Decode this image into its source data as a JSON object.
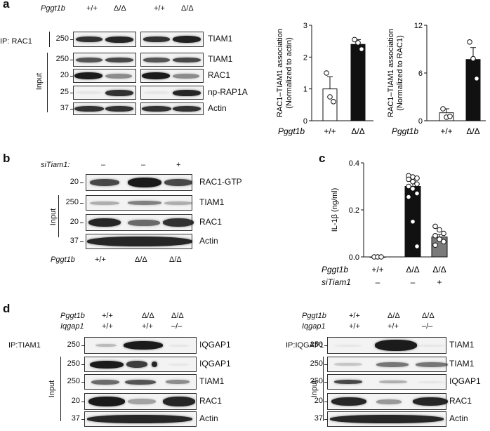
{
  "panel_a": {
    "letter": "a",
    "genotype_label": "Pggt1b",
    "genotypes": [
      "+/+",
      "Δ/Δ",
      "+/+",
      "Δ/Δ"
    ],
    "ip_label": "IP: RAC1",
    "input_label": "Input",
    "blots": [
      {
        "mw": "250",
        "label": "TIAM1"
      },
      {
        "mw": "250",
        "label": "TIAM1"
      },
      {
        "mw": "20",
        "label": "RAC1"
      },
      {
        "mw": "25",
        "label": "np-RAP1A"
      },
      {
        "mw": "37",
        "label": "Actin"
      }
    ]
  },
  "panel_b": {
    "letter": "b",
    "si_label": "siTiam1:",
    "si_values": [
      "–",
      "–",
      "+"
    ],
    "genotype_label": "Pggt1b",
    "genotypes": [
      "+/+",
      "Δ/Δ",
      "Δ/Δ"
    ],
    "input_label": "Input",
    "blots": [
      {
        "mw": "20",
        "label": "RAC1-GTP"
      },
      {
        "mw": "250",
        "label": "TIAM1"
      },
      {
        "mw": "20",
        "label": "RAC1"
      },
      {
        "mw": "37",
        "label": "Actin"
      }
    ]
  },
  "panel_c": {
    "letter": "c"
  },
  "panel_d": {
    "letter": "d",
    "left": {
      "genotype_label": "Pggt1b",
      "iqgap_label": "Iqgap1",
      "genotypes": [
        "+/+",
        "Δ/Δ",
        "Δ/Δ"
      ],
      "iqgap": [
        "+/+",
        "+/+",
        "–/–"
      ],
      "ip_label": "IP:TIAM1",
      "input_label": "Input",
      "blots": [
        {
          "mw": "250",
          "label": "IQGAP1"
        },
        {
          "mw": "250",
          "label": "IQGAP1"
        },
        {
          "mw": "250",
          "label": "TIAM1"
        },
        {
          "mw": "20",
          "label": "RAC1"
        },
        {
          "mw": "37",
          "label": "Actin"
        }
      ]
    },
    "right": {
      "genotype_label": "Pggt1b",
      "iqgap_label": "Iqgap1",
      "genotypes": [
        "+/+",
        "Δ/Δ",
        "Δ/Δ"
      ],
      "iqgap": [
        "+/+",
        "+/+",
        "–/–"
      ],
      "ip_label": "IP:IQGAP1",
      "input_label": "Input",
      "blots": [
        {
          "mw": "250",
          "label": "TIAM1"
        },
        {
          "mw": "250",
          "label": "TIAM1"
        },
        {
          "mw": "250",
          "label": "IQGAP1"
        },
        {
          "mw": "20",
          "label": "RAC1"
        },
        {
          "mw": "37",
          "label": "Actin"
        }
      ]
    }
  },
  "chart_data": [
    {
      "type": "bar",
      "ylabel": "RAC1–TIAM1 association (Normalized to actin)",
      "ylabel_line1": "RAC1–TIAM1 association",
      "ylabel_line2": "(Normalized to actin)",
      "xlabel_prefix": "Pggt1b",
      "categories": [
        "+/+",
        "Δ/Δ"
      ],
      "values": [
        1.0,
        2.4
      ],
      "errors": [
        0.38,
        0.15
      ],
      "points": [
        [
          1.5,
          0.75,
          0.6
        ],
        [
          2.55,
          2.45,
          2.25
        ]
      ],
      "bar_colors": [
        "#ffffff",
        "#111111"
      ],
      "ylim": [
        0,
        3
      ],
      "yticks": [
        0,
        1,
        2,
        3
      ]
    },
    {
      "type": "bar",
      "ylabel": "RAC1–TIAM1 association (Normalized to RAC1)",
      "ylabel_line1": "RAC1–TIAM1 association",
      "ylabel_line2": "(Normalized to RAC1)",
      "xlabel_prefix": "Pggt1b",
      "categories": [
        "+/+",
        "Δ/Δ"
      ],
      "values": [
        1.0,
        7.7
      ],
      "errors": [
        0.5,
        1.5
      ],
      "points": [
        [
          1.5,
          0.45,
          0.55
        ],
        [
          9.9,
          7.8,
          5.3
        ]
      ],
      "bar_colors": [
        "#ffffff",
        "#111111"
      ],
      "ylim": [
        0,
        12
      ],
      "yticks": [
        0,
        6,
        12
      ]
    },
    {
      "type": "bar",
      "ylabel": "IL-1β (ng/ml)",
      "categories": [
        "+/+",
        "Δ/Δ",
        "Δ/Δ"
      ],
      "row_labels": [
        "Pggt1b",
        "siTiam1"
      ],
      "row2": [
        "–",
        "–",
        "+"
      ],
      "values": [
        0.0,
        0.3,
        0.085
      ],
      "errors": [
        0.0,
        0.02,
        0.01
      ],
      "points": [
        [
          0.0,
          0.0,
          0.0
        ],
        [
          0.345,
          0.34,
          0.335,
          0.33,
          0.32,
          0.31,
          0.3,
          0.29,
          0.27,
          0.255,
          0.15,
          0.045
        ],
        [
          0.13,
          0.115,
          0.1,
          0.09,
          0.075,
          0.065,
          0.05
        ]
      ],
      "bar_colors": [
        "#ffffff",
        "#111111",
        "#7a7a7a"
      ],
      "ylim": [
        0,
        0.4
      ],
      "yticks": [
        0.0,
        0.2,
        0.4
      ]
    }
  ]
}
